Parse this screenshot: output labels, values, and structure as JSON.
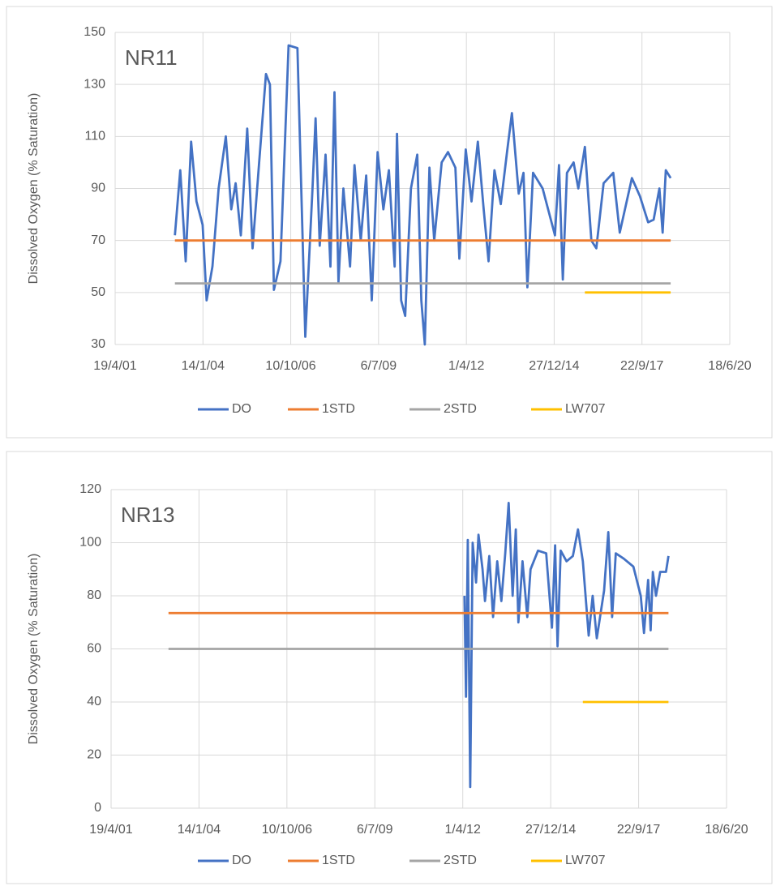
{
  "chart_data": [
    {
      "type": "line",
      "title": "NR11",
      "y_label": "Dissolved Oxygen (% Saturation)",
      "grid": true,
      "xlim": [
        "2001-04-19",
        "2020-06-18"
      ],
      "xticks": [
        {
          "value": "2001-04-19",
          "label": "19/4/01"
        },
        {
          "value": "2004-01-14",
          "label": "14/1/04"
        },
        {
          "value": "2006-10-10",
          "label": "10/10/06"
        },
        {
          "value": "2009-07-06",
          "label": "6/7/09"
        },
        {
          "value": "2012-04-01",
          "label": "1/4/12"
        },
        {
          "value": "2014-12-27",
          "label": "27/12/14"
        },
        {
          "value": "2017-09-22",
          "label": "22/9/17"
        },
        {
          "value": "2020-06-18",
          "label": "18/6/20"
        }
      ],
      "ylim": [
        30,
        150
      ],
      "yticks": [
        30,
        50,
        70,
        90,
        110,
        130,
        150
      ],
      "series": [
        {
          "name": "DO",
          "color": "#4472c4",
          "x": [
            "2003-03-01",
            "2003-05-01",
            "2003-07-01",
            "2003-09-01",
            "2003-11-01",
            "2004-01-10",
            "2004-02-25",
            "2004-05-01",
            "2004-07-10",
            "2004-10-01",
            "2004-12-01",
            "2005-01-20",
            "2005-03-20",
            "2005-06-01",
            "2005-08-01",
            "2005-10-15",
            "2006-01-01",
            "2006-02-15",
            "2006-04-01",
            "2006-06-15",
            "2006-09-15",
            "2006-12-25",
            "2007-03-25",
            "2007-06-15",
            "2007-07-20",
            "2007-09-05",
            "2007-11-10",
            "2008-01-05",
            "2008-02-20",
            "2008-04-05",
            "2008-06-01",
            "2008-08-15",
            "2008-10-05",
            "2008-12-15",
            "2009-02-15",
            "2009-04-20",
            "2009-06-25",
            "2009-08-30",
            "2009-11-01",
            "2010-01-05",
            "2010-02-01",
            "2010-03-20",
            "2010-05-05",
            "2010-07-10",
            "2010-09-20",
            "2010-11-05",
            "2010-12-15",
            "2011-02-05",
            "2011-04-01",
            "2011-06-25",
            "2011-09-05",
            "2011-11-28",
            "2012-01-12",
            "2012-03-25",
            "2012-05-30",
            "2012-08-10",
            "2012-10-15",
            "2012-12-10",
            "2013-02-15",
            "2013-04-28",
            "2013-07-08",
            "2013-09-02",
            "2013-11-18",
            "2014-01-12",
            "2014-02-25",
            "2014-05-01",
            "2014-08-18",
            "2015-01-05",
            "2015-02-20",
            "2015-04-05",
            "2015-05-22",
            "2015-08-05",
            "2015-09-28",
            "2015-12-12",
            "2016-02-24",
            "2016-04-20",
            "2016-07-12",
            "2016-10-30",
            "2017-01-12",
            "2017-05-30",
            "2017-08-30",
            "2017-12-01",
            "2018-02-02",
            "2018-04-08",
            "2018-05-15",
            "2018-06-20",
            "2018-08-15"
          ],
          "values": [
            72,
            97,
            62,
            108,
            85,
            76,
            47,
            60,
            90,
            110,
            82,
            92,
            72,
            113,
            67,
            100,
            134,
            130,
            51,
            62,
            145,
            144,
            33,
            90,
            117,
            68,
            103,
            60,
            127,
            54,
            90,
            60,
            99,
            70,
            95,
            47,
            104,
            82,
            97,
            60,
            111,
            47,
            41,
            90,
            103,
            47,
            30,
            98,
            70,
            100,
            104,
            98,
            63,
            105,
            85,
            108,
            82,
            62,
            97,
            84,
            104,
            119,
            88,
            96,
            52,
            96,
            90,
            72,
            99,
            55,
            96,
            100,
            90,
            106,
            70,
            67,
            92,
            96,
            73,
            94,
            87,
            77,
            78,
            90,
            73,
            97,
            94
          ]
        },
        {
          "name": "1STD",
          "color": "#ed7d31",
          "x": [
            "2003-03-01",
            "2018-08-15"
          ],
          "values": [
            70,
            70
          ]
        },
        {
          "name": "2STD",
          "color": "#a5a5a5",
          "x": [
            "2003-03-01",
            "2018-08-15"
          ],
          "values": [
            53.5,
            53.5
          ]
        },
        {
          "name": "LW707",
          "color": "#ffc000",
          "x": [
            "2015-12-12",
            "2018-08-15"
          ],
          "values": [
            50,
            50
          ]
        }
      ]
    },
    {
      "type": "line",
      "title": "NR13",
      "y_label": "Dissolved Oxygen (% Saturation)",
      "grid": true,
      "xlim": [
        "2001-04-19",
        "2020-06-18"
      ],
      "xticks": [
        {
          "value": "2001-04-19",
          "label": "19/4/01"
        },
        {
          "value": "2004-01-14",
          "label": "14/1/04"
        },
        {
          "value": "2006-10-10",
          "label": "10/10/06"
        },
        {
          "value": "2009-07-06",
          "label": "6/7/09"
        },
        {
          "value": "2012-04-01",
          "label": "1/4/12"
        },
        {
          "value": "2014-12-27",
          "label": "27/12/14"
        },
        {
          "value": "2017-09-22",
          "label": "22/9/17"
        },
        {
          "value": "2020-06-18",
          "label": "18/6/20"
        }
      ],
      "ylim": [
        0,
        120
      ],
      "yticks": [
        0,
        20,
        40,
        60,
        80,
        100,
        120
      ],
      "series": [
        {
          "name": "DO",
          "color": "#4472c4",
          "x": [
            "2012-04-20",
            "2012-05-08",
            "2012-05-28",
            "2012-06-25",
            "2012-07-22",
            "2012-08-30",
            "2012-09-27",
            "2012-11-12",
            "2012-12-10",
            "2013-01-27",
            "2013-03-12",
            "2013-04-28",
            "2013-06-14",
            "2013-07-28",
            "2013-09-05",
            "2013-10-20",
            "2013-11-25",
            "2013-12-25",
            "2014-02-10",
            "2014-04-05",
            "2014-05-12",
            "2014-08-05",
            "2014-11-06",
            "2015-01-10",
            "2015-02-15",
            "2015-03-15",
            "2015-04-20",
            "2015-06-25",
            "2015-09-05",
            "2015-11-02",
            "2015-12-28",
            "2016-03-03",
            "2016-04-17",
            "2016-06-03",
            "2016-08-25",
            "2016-10-12",
            "2016-11-25",
            "2017-01-05",
            "2017-04-05",
            "2017-07-24",
            "2017-10-16",
            "2017-11-22",
            "2018-01-08",
            "2018-02-06",
            "2018-03-03",
            "2018-04-08",
            "2018-05-26",
            "2018-07-30",
            "2018-08-28"
          ],
          "values": [
            80,
            42,
            101,
            8,
            100,
            85,
            103,
            90,
            78,
            95,
            72,
            93,
            78,
            96,
            115,
            80,
            105,
            70,
            93,
            72,
            90,
            97,
            96,
            68,
            99,
            61,
            97,
            93,
            95,
            105,
            93,
            65,
            80,
            64,
            82,
            104,
            72,
            96,
            94,
            91,
            80,
            66,
            86,
            67,
            89,
            80,
            89,
            89,
            95
          ]
        },
        {
          "name": "1STD",
          "color": "#ed7d31",
          "x": [
            "2003-02-01",
            "2018-08-28"
          ],
          "values": [
            73.5,
            73.5
          ]
        },
        {
          "name": "2STD",
          "color": "#a5a5a5",
          "x": [
            "2003-02-01",
            "2018-08-28"
          ],
          "values": [
            60,
            60
          ]
        },
        {
          "name": "LW707",
          "color": "#ffc000",
          "x": [
            "2015-12-28",
            "2018-08-28"
          ],
          "values": [
            40,
            40
          ]
        }
      ]
    }
  ]
}
